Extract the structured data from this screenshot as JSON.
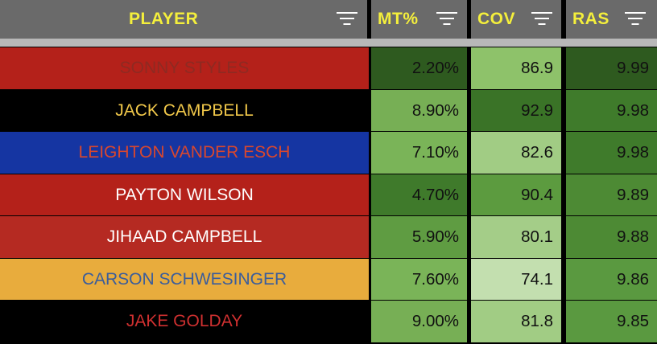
{
  "header": {
    "columns": [
      {
        "label": "PLAYER"
      },
      {
        "label": "MT%"
      },
      {
        "label": "COV"
      },
      {
        "label": "RAS"
      }
    ]
  },
  "colors": {
    "header_bg": "#6a6a6a",
    "header_text": "#f4ef3c",
    "separator": "#b8b8b8"
  },
  "rows": [
    {
      "player": "SONNY STYLES",
      "mt": "2.20%",
      "cov": "86.9",
      "ras": "9.99",
      "bg": "#b4211a",
      "fg": "#8e2a22",
      "mt_bg": "#2e5a1f",
      "cov_bg": "#8ec26a",
      "ras_bg": "#2e5a1f"
    },
    {
      "player": "JACK CAMPBELL",
      "mt": "8.90%",
      "cov": "92.9",
      "ras": "9.98",
      "bg": "#000000",
      "fg": "#f1c84a",
      "mt_bg": "#77af55",
      "cov_bg": "#3a7327",
      "ras_bg": "#3f7b2b"
    },
    {
      "player": "LEIGHTON VANDER ESCH",
      "mt": "7.10%",
      "cov": "82.6",
      "ras": "9.98",
      "bg": "#1535a2",
      "fg": "#d8472e",
      "mt_bg": "#7ab458",
      "cov_bg": "#a1cc84",
      "ras_bg": "#3f7b2b"
    },
    {
      "player": "PAYTON WILSON",
      "mt": "4.70%",
      "cov": "90.4",
      "ras": "9.89",
      "bg": "#b4211a",
      "fg": "#ffffff",
      "mt_bg": "#3f7a2b",
      "cov_bg": "#5c9b3f",
      "ras_bg": "#4d8a34"
    },
    {
      "player": "JIHAAD CAMPBELL",
      "mt": "5.90%",
      "cov": "80.1",
      "ras": "9.88",
      "bg": "#b52a22",
      "fg": "#ffffff",
      "mt_bg": "#5f9c42",
      "cov_bg": "#a4cd88",
      "ras_bg": "#4d8a34"
    },
    {
      "player": "CARSON SCHWESINGER",
      "mt": "7.60%",
      "cov": "74.1",
      "ras": "9.86",
      "bg": "#e8ac3d",
      "fg": "#3a5d9c",
      "mt_bg": "#7ab458",
      "cov_bg": "#c3dfaf",
      "ras_bg": "#5a9940"
    },
    {
      "player": "JAKE GOLDAY",
      "mt": "9.00%",
      "cov": "81.8",
      "ras": "9.85",
      "bg": "#000000",
      "fg": "#cf3030",
      "mt_bg": "#77af55",
      "cov_bg": "#a1cc84",
      "ras_bg": "#5a9940"
    }
  ]
}
